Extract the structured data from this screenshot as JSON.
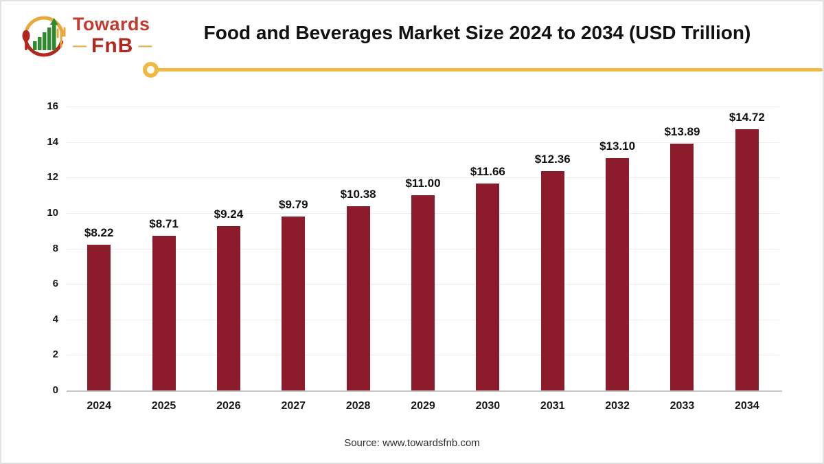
{
  "header": {
    "title": "Food and Beverages Market Size 2024 to 2034 (USD Trillion)"
  },
  "logo": {
    "brand_top": "Towards",
    "brand_bottom": "FnB",
    "dash": "—"
  },
  "footer": {
    "source": "Source: www.towardsfnb.com"
  },
  "colors": {
    "bar": "#8c1c2c",
    "accent_yellow": "#f0b942",
    "grid": "#ececec",
    "axis": "#c6c6c6",
    "logo_red": "#c23b2e",
    "logo_dark_red": "#b3271f",
    "logo_green": "#2e8b2e"
  },
  "chart_data": {
    "type": "bar",
    "title": "Food and Beverages Market Size 2024 to 2034 (USD Trillion)",
    "categories": [
      "2024",
      "2025",
      "2026",
      "2027",
      "2028",
      "2029",
      "2030",
      "2031",
      "2032",
      "2033",
      "2034"
    ],
    "values": [
      8.22,
      8.71,
      9.24,
      9.79,
      10.38,
      11.0,
      11.66,
      12.36,
      13.1,
      13.89,
      14.72
    ],
    "value_labels": [
      "$8.22",
      "$8.71",
      "$9.24",
      "$9.79",
      "$10.38",
      "$11.00",
      "$11.66",
      "$12.36",
      "$13.10",
      "$13.89",
      "$14.72"
    ],
    "xlabel": "",
    "ylabel": "",
    "ylim": [
      0,
      16
    ],
    "ytick_step": 2,
    "grid": true,
    "legend": "none",
    "bar_color": "#8c1c2c"
  }
}
